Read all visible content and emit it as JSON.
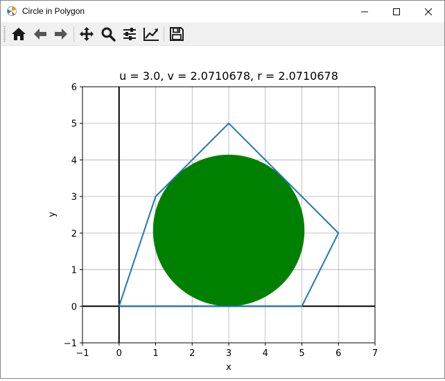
{
  "window": {
    "title": "Circle in Polygon",
    "icons": [
      "app-figure-icon",
      "minimize-icon",
      "maximize-icon",
      "close-icon"
    ]
  },
  "toolbar": {
    "buttons": [
      {
        "name": "home",
        "icon": "home-icon"
      },
      {
        "name": "back",
        "icon": "arrow-left-icon"
      },
      {
        "name": "forward",
        "icon": "arrow-right-icon"
      },
      {
        "name": "pan",
        "icon": "move-icon"
      },
      {
        "name": "zoom",
        "icon": "magnifier-icon"
      },
      {
        "name": "subplots",
        "icon": "sliders-icon"
      },
      {
        "name": "customize",
        "icon": "line-chart-icon"
      },
      {
        "name": "save",
        "icon": "floppy-disk-icon"
      }
    ]
  },
  "chart_data": {
    "type": "line",
    "title": "u = 3.0, v = 2.0710678, r = 2.0710678",
    "xlabel": "x",
    "ylabel": "y",
    "xlim": [
      -1,
      7
    ],
    "ylim": [
      -1,
      6
    ],
    "xticks": [
      "−1",
      "0",
      "1",
      "2",
      "3",
      "4",
      "5",
      "6",
      "7"
    ],
    "xtick_values": [
      -1,
      0,
      1,
      2,
      3,
      4,
      5,
      6,
      7
    ],
    "yticks": [
      "−1",
      "0",
      "1",
      "2",
      "3",
      "4",
      "5",
      "6"
    ],
    "ytick_values": [
      -1,
      0,
      1,
      2,
      3,
      4,
      5,
      6
    ],
    "grid": true,
    "axis_lines": {
      "x": 0,
      "y": 0,
      "color": "#000000"
    },
    "polygon": {
      "x": [
        0,
        5,
        6,
        3,
        1,
        0
      ],
      "y": [
        0,
        0,
        2,
        5,
        3,
        0
      ],
      "color": "#1f77b4"
    },
    "circle": {
      "center": [
        3.0,
        2.0710678
      ],
      "radius": 2.0710678,
      "color": "#008000"
    }
  }
}
